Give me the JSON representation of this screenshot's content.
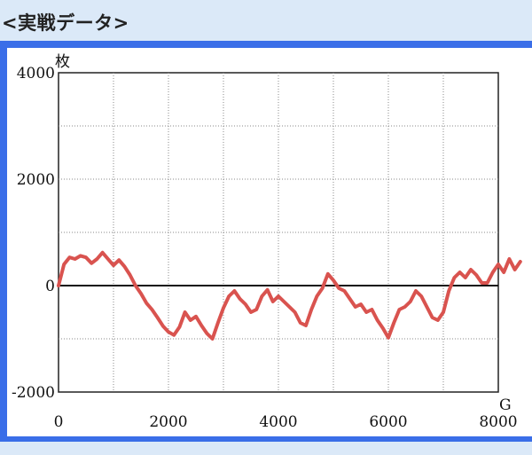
{
  "header": {
    "title": "<実戦データ>"
  },
  "colors": {
    "frame": "#3a6ee8",
    "background": "#dbe9f8",
    "line": "#d9534f"
  },
  "chart_data": {
    "type": "line",
    "title": "",
    "xlabel": "G",
    "ylabel": "枚",
    "xlim": [
      0,
      8000
    ],
    "ylim": [
      -2000,
      4000
    ],
    "x_ticks": [
      0,
      2000,
      4000,
      6000,
      8000
    ],
    "y_ticks": [
      -2000,
      0,
      2000,
      4000
    ],
    "x_tick_labels": [
      "0",
      "2000",
      "4000",
      "6000",
      "8000"
    ],
    "y_tick_labels": [
      "-2000",
      "0",
      "2000",
      "4000"
    ],
    "grid": true,
    "series": [
      {
        "name": "",
        "x": [
          0,
          100,
          200,
          300,
          400,
          500,
          600,
          700,
          800,
          900,
          1000,
          1100,
          1200,
          1300,
          1400,
          1500,
          1600,
          1700,
          1800,
          1900,
          2000,
          2100,
          2200,
          2300,
          2400,
          2500,
          2600,
          2700,
          2800,
          2900,
          3000,
          3100,
          3200,
          3300,
          3400,
          3500,
          3600,
          3700,
          3800,
          3900,
          4000,
          4100,
          4200,
          4300,
          4400,
          4500,
          4600,
          4700,
          4800,
          4900,
          5000,
          5100,
          5200,
          5300,
          5400,
          5500,
          5600,
          5700,
          5800,
          5900,
          6000,
          6100,
          6200,
          6300,
          6400,
          6500,
          6600,
          6700,
          6800,
          6900,
          7000,
          7100,
          7200,
          7300,
          7400,
          7500,
          7600,
          7700,
          7800,
          7900,
          8000,
          8100,
          8200,
          8300,
          8400
        ],
        "y": [
          0,
          400,
          530,
          500,
          560,
          530,
          420,
          500,
          620,
          500,
          380,
          480,
          360,
          200,
          0,
          -150,
          -330,
          -450,
          -600,
          -760,
          -870,
          -930,
          -780,
          -500,
          -650,
          -580,
          -750,
          -900,
          -1000,
          -700,
          -420,
          -200,
          -100,
          -250,
          -350,
          -500,
          -450,
          -200,
          -80,
          -300,
          -200,
          -300,
          -400,
          -500,
          -700,
          -750,
          -450,
          -200,
          -50,
          220,
          100,
          -50,
          -100,
          -250,
          -400,
          -350,
          -500,
          -450,
          -650,
          -800,
          -980,
          -700,
          -450,
          -400,
          -300,
          -100,
          -200,
          -400,
          -600,
          -650,
          -500,
          -100,
          150,
          250,
          150,
          300,
          200,
          50,
          50,
          250,
          400,
          250,
          500,
          300,
          450
        ]
      }
    ]
  }
}
